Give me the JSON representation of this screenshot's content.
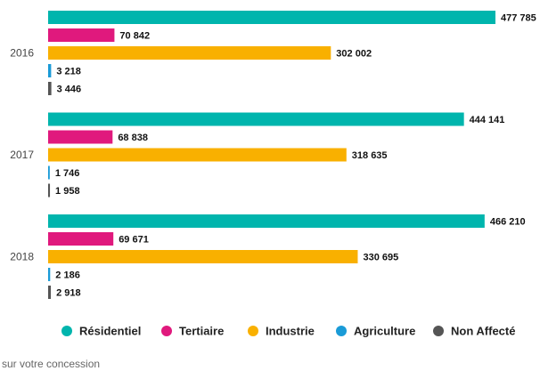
{
  "chart_data": {
    "type": "bar",
    "orientation": "horizontal",
    "categories": [
      "2016",
      "2017",
      "2018"
    ],
    "series": [
      {
        "name": "Résidentiel",
        "color": "#00b5ad",
        "values": [
          477785,
          444141,
          466210
        ],
        "value_labels": [
          "477 785",
          "444 141",
          "466 210"
        ]
      },
      {
        "name": "Tertiaire",
        "color": "#e0197d",
        "values": [
          70842,
          68838,
          69671
        ],
        "value_labels": [
          "70 842",
          "68 838",
          "69 671"
        ]
      },
      {
        "name": "Industrie",
        "color": "#f9b000",
        "values": [
          302002,
          318635,
          330695
        ],
        "value_labels": [
          "302 002",
          "318 635",
          "330 695"
        ]
      },
      {
        "name": "Agriculture",
        "color": "#1a9bd7",
        "values": [
          3218,
          1746,
          2186
        ],
        "value_labels": [
          "3 218",
          "1 746",
          "2 186"
        ]
      },
      {
        "name": "Non Affecté",
        "color": "#555555",
        "values": [
          3446,
          1958,
          2918
        ],
        "value_labels": [
          "3 446",
          "1 958",
          "2 918"
        ]
      }
    ],
    "legend": "bottom",
    "footnote": "sur votre concession"
  }
}
